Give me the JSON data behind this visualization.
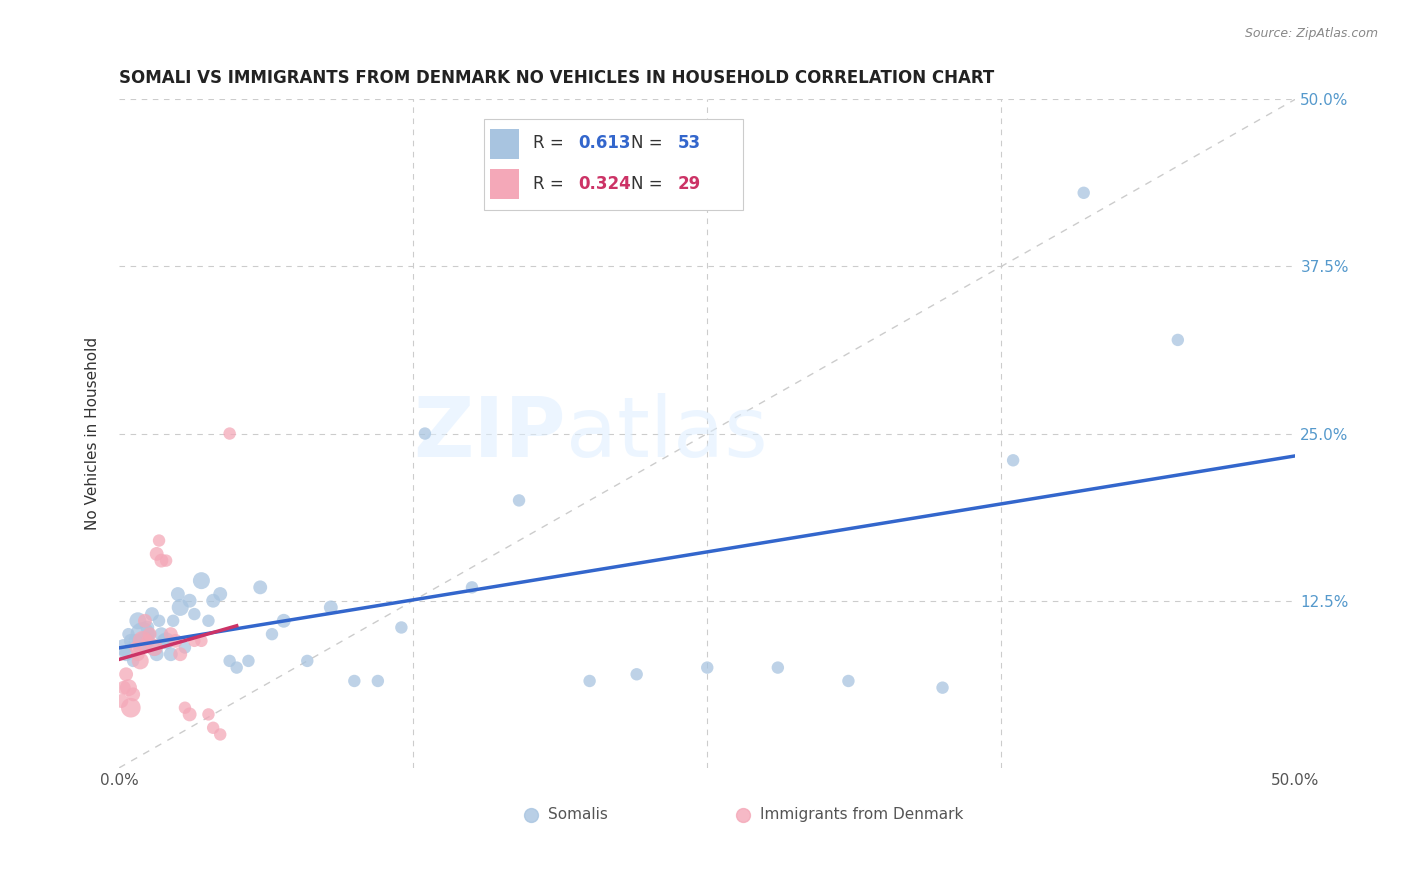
{
  "title": "SOMALI VS IMMIGRANTS FROM DENMARK NO VEHICLES IN HOUSEHOLD CORRELATION CHART",
  "source": "Source: ZipAtlas.com",
  "ylabel": "No Vehicles in Household",
  "xlim": [
    0.0,
    0.5
  ],
  "ylim": [
    0.0,
    0.5
  ],
  "somali_color": "#a8c4e0",
  "denmark_color": "#f4a8b8",
  "somali_line_color": "#3366cc",
  "denmark_line_color": "#cc3366",
  "diagonal_color": "#cccccc",
  "R_somali": "0.613",
  "N_somali": "53",
  "R_denmark": "0.324",
  "N_denmark": "29",
  "somali_x": [
    0.002,
    0.003,
    0.004,
    0.005,
    0.006,
    0.007,
    0.008,
    0.009,
    0.01,
    0.011,
    0.012,
    0.013,
    0.014,
    0.015,
    0.016,
    0.017,
    0.018,
    0.019,
    0.02,
    0.022,
    0.023,
    0.025,
    0.026,
    0.028,
    0.03,
    0.032,
    0.035,
    0.038,
    0.04,
    0.043,
    0.047,
    0.05,
    0.055,
    0.06,
    0.065,
    0.07,
    0.08,
    0.09,
    0.1,
    0.11,
    0.12,
    0.13,
    0.15,
    0.17,
    0.2,
    0.22,
    0.25,
    0.28,
    0.31,
    0.35,
    0.38,
    0.41,
    0.45
  ],
  "somali_y": [
    0.09,
    0.085,
    0.1,
    0.095,
    0.08,
    0.095,
    0.11,
    0.09,
    0.1,
    0.095,
    0.105,
    0.1,
    0.115,
    0.09,
    0.085,
    0.11,
    0.1,
    0.095,
    0.095,
    0.085,
    0.11,
    0.13,
    0.12,
    0.09,
    0.125,
    0.115,
    0.14,
    0.11,
    0.125,
    0.13,
    0.08,
    0.075,
    0.08,
    0.135,
    0.1,
    0.11,
    0.08,
    0.12,
    0.065,
    0.065,
    0.105,
    0.25,
    0.135,
    0.2,
    0.065,
    0.07,
    0.075,
    0.075,
    0.065,
    0.06,
    0.23,
    0.43,
    0.32
  ],
  "somali_sizes": [
    150,
    100,
    80,
    100,
    80,
    100,
    150,
    100,
    300,
    200,
    100,
    80,
    100,
    150,
    100,
    80,
    100,
    100,
    150,
    100,
    80,
    100,
    150,
    80,
    100,
    80,
    150,
    80,
    100,
    100,
    80,
    80,
    80,
    100,
    80,
    100,
    80,
    100,
    80,
    80,
    80,
    80,
    80,
    80,
    80,
    80,
    80,
    80,
    80,
    80,
    80,
    80,
    80
  ],
  "denmark_x": [
    0.001,
    0.002,
    0.003,
    0.004,
    0.005,
    0.006,
    0.007,
    0.008,
    0.009,
    0.01,
    0.011,
    0.012,
    0.013,
    0.015,
    0.016,
    0.017,
    0.018,
    0.02,
    0.022,
    0.024,
    0.026,
    0.028,
    0.03,
    0.032,
    0.035,
    0.038,
    0.04,
    0.043,
    0.047
  ],
  "denmark_y": [
    0.05,
    0.06,
    0.07,
    0.06,
    0.045,
    0.055,
    0.09,
    0.085,
    0.08,
    0.095,
    0.11,
    0.095,
    0.1,
    0.09,
    0.16,
    0.17,
    0.155,
    0.155,
    0.1,
    0.095,
    0.085,
    0.045,
    0.04,
    0.095,
    0.095,
    0.04,
    0.03,
    0.025,
    0.25
  ],
  "denmark_sizes": [
    100,
    100,
    100,
    150,
    200,
    100,
    80,
    100,
    150,
    200,
    100,
    80,
    100,
    150,
    100,
    80,
    100,
    80,
    100,
    100,
    100,
    80,
    100,
    80,
    80,
    80,
    80,
    80,
    80
  ]
}
